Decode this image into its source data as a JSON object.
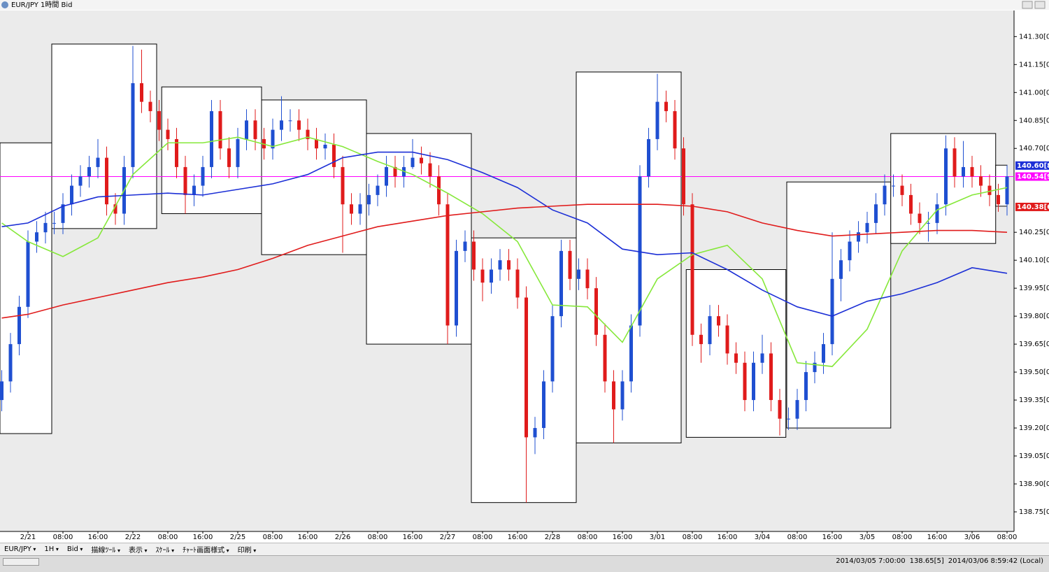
{
  "window": {
    "title": "EUR/JPY 1時間 Bid"
  },
  "toolbar": {
    "items": [
      "EUR/JPY",
      "1H",
      "Bid",
      "描線ﾂｰﾙ",
      "表示",
      "ｽｹｰﾙ",
      "ﾁｬｰﾄ画面様式",
      "印刷"
    ]
  },
  "status_bar": {
    "items": [
      "2014/03/05 7:00:00",
      "138.65[5]",
      "2014/03/06 8:59:42 (Local)"
    ]
  },
  "chart_data": {
    "type": "candlestick",
    "up_color": "#1f4fd1",
    "down_color": "#e01b1b",
    "xlim": [
      -6.4,
      225.6
    ],
    "ylim": [
      138.645,
      141.44
    ],
    "xticks": [
      {
        "value": 0,
        "label": "2/21"
      },
      {
        "value": 8,
        "label": "08:00"
      },
      {
        "value": 16,
        "label": "16:00"
      },
      {
        "value": 24,
        "label": "2/22"
      },
      {
        "value": 32,
        "label": "08:00"
      },
      {
        "value": 40,
        "label": "16:00"
      },
      {
        "value": 48,
        "label": "2/25"
      },
      {
        "value": 56,
        "label": "08:00"
      },
      {
        "value": 64,
        "label": "16:00"
      },
      {
        "value": 72,
        "label": "2/26"
      },
      {
        "value": 80,
        "label": "08:00"
      },
      {
        "value": 88,
        "label": "16:00"
      },
      {
        "value": 96,
        "label": "2/27"
      },
      {
        "value": 104,
        "label": "08:00"
      },
      {
        "value": 112,
        "label": "16:00"
      },
      {
        "value": 120,
        "label": "2/28"
      },
      {
        "value": 128,
        "label": "08:00"
      },
      {
        "value": 136,
        "label": "16:00"
      },
      {
        "value": 144,
        "label": "3/01"
      },
      {
        "value": 152,
        "label": "08:00"
      },
      {
        "value": 160,
        "label": "16:00"
      },
      {
        "value": 168,
        "label": "3/04"
      },
      {
        "value": 176,
        "label": "08:00"
      },
      {
        "value": 184,
        "label": "16:00"
      },
      {
        "value": 192,
        "label": "3/05"
      },
      {
        "value": 200,
        "label": "08:00"
      },
      {
        "value": 208,
        "label": "16:00"
      },
      {
        "value": 216,
        "label": "3/06"
      },
      {
        "value": 224,
        "label": "08:00"
      }
    ],
    "yticks": [
      {
        "value": 141.3,
        "label": "141.30[0]"
      },
      {
        "value": 141.15,
        "label": "141.15[0]"
      },
      {
        "value": 141.0,
        "label": "141.00[0]"
      },
      {
        "value": 140.85,
        "label": "140.85[0]"
      },
      {
        "value": 140.7,
        "label": "140.70[0]"
      },
      {
        "value": 140.25,
        "label": "140.25[0]"
      },
      {
        "value": 140.1,
        "label": "140.10[0]"
      },
      {
        "value": 139.95,
        "label": "139.95[0]"
      },
      {
        "value": 139.8,
        "label": "139.80[0]"
      },
      {
        "value": 139.65,
        "label": "139.65[0]"
      },
      {
        "value": 139.5,
        "label": "139.50[0]"
      },
      {
        "value": 139.35,
        "label": "139.35[0]"
      },
      {
        "value": 139.2,
        "label": "139.20[0]"
      },
      {
        "value": 139.05,
        "label": "139.05[0]"
      },
      {
        "value": 138.9,
        "label": "138.90[0]"
      },
      {
        "value": 138.75,
        "label": "138.75[0]"
      }
    ],
    "price_labels": [
      {
        "value": 140.608,
        "label": "140.60[8",
        "color": "#1c2fd6"
      },
      {
        "value": 140.549,
        "label": "140.54[9",
        "color": "#ff00ff",
        "line": true
      },
      {
        "value": 140.386,
        "label": "140.38[6",
        "color": "#e01b1b"
      }
    ],
    "range_boxes": [
      {
        "start": -6.4,
        "end": 5.44,
        "high": 140.73,
        "low": 139.17
      },
      {
        "start": 5.44,
        "end": 29.44,
        "high": 141.26,
        "low": 140.27
      },
      {
        "start": 30.6,
        "end": 53.44,
        "high": 141.03,
        "low": 140.35
      },
      {
        "start": 53.44,
        "end": 77.44,
        "high": 140.96,
        "low": 140.13
      },
      {
        "start": 77.44,
        "end": 101.44,
        "high": 140.78,
        "low": 139.65
      },
      {
        "start": 101.44,
        "end": 125.44,
        "high": 140.22,
        "low": 138.8
      },
      {
        "start": 125.44,
        "end": 149.44,
        "high": 141.11,
        "low": 139.12
      },
      {
        "start": 150.6,
        "end": 173.4,
        "high": 140.05,
        "low": 139.15
      },
      {
        "start": 173.6,
        "end": 197.4,
        "high": 140.52,
        "low": 139.2
      },
      {
        "start": 197.4,
        "end": 221.4,
        "high": 140.78,
        "low": 140.19
      },
      {
        "start": 221.4,
        "end": 224,
        "high": 140.61,
        "low": 140.39
      }
    ],
    "x": [
      -6,
      -4,
      -2,
      0,
      2,
      4,
      6,
      8,
      10,
      12,
      14,
      16,
      18,
      20,
      22,
      24,
      26,
      28,
      30,
      32,
      34,
      36,
      38,
      40,
      42,
      44,
      46,
      48,
      50,
      52,
      54,
      56,
      58,
      60,
      62,
      64,
      66,
      68,
      70,
      72,
      74,
      76,
      78,
      80,
      82,
      84,
      86,
      88,
      90,
      92,
      94,
      96,
      98,
      100,
      102,
      104,
      106,
      108,
      110,
      112,
      114,
      116,
      118,
      120,
      122,
      124,
      126,
      128,
      130,
      132,
      134,
      136,
      138,
      140,
      142,
      144,
      146,
      148,
      150,
      152,
      154,
      156,
      158,
      160,
      162,
      164,
      166,
      168,
      170,
      172,
      174,
      176,
      178,
      180,
      182,
      184,
      186,
      188,
      190,
      192,
      194,
      196,
      198,
      200,
      202,
      204,
      206,
      208,
      210,
      212,
      214,
      216,
      218,
      220,
      222,
      224
    ],
    "open": [
      139.35,
      139.45,
      139.65,
      139.85,
      140.2,
      140.25,
      140.3,
      140.3,
      140.4,
      140.5,
      140.55,
      140.6,
      140.65,
      140.4,
      140.35,
      140.6,
      141.05,
      140.95,
      140.9,
      140.8,
      140.75,
      140.6,
      140.45,
      140.5,
      140.6,
      140.9,
      140.7,
      140.6,
      140.75,
      140.85,
      140.75,
      140.7,
      140.8,
      140.85,
      140.85,
      140.8,
      140.75,
      140.7,
      140.72,
      140.6,
      140.4,
      140.35,
      140.4,
      140.45,
      140.5,
      140.6,
      140.55,
      140.6,
      140.65,
      140.62,
      140.55,
      140.4,
      139.75,
      140.15,
      140.2,
      140.05,
      139.98,
      140.05,
      140.1,
      140.05,
      139.9,
      139.15,
      139.2,
      139.45,
      139.8,
      140.15,
      140.0,
      140.05,
      139.95,
      139.7,
      139.45,
      139.3,
      139.45,
      139.75,
      140.55,
      140.75,
      140.95,
      140.9,
      140.7,
      140.4,
      139.7,
      139.65,
      139.8,
      139.75,
      139.6,
      139.55,
      139.35,
      139.55,
      139.6,
      139.35,
      139.25,
      139.25,
      139.35,
      139.5,
      139.55,
      139.65,
      140.0,
      140.1,
      140.2,
      140.25,
      140.3,
      140.4,
      140.5,
      140.5,
      140.45,
      140.35,
      140.3,
      140.3,
      140.4,
      140.7,
      140.55,
      140.6,
      140.55,
      140.5,
      140.45,
      140.4
    ],
    "high": [
      139.51,
      139.71,
      139.91,
      140.26,
      140.31,
      140.36,
      140.36,
      140.46,
      140.56,
      140.61,
      140.66,
      140.75,
      140.71,
      140.46,
      140.66,
      141.25,
      141.23,
      141.01,
      140.96,
      140.86,
      140.81,
      140.66,
      140.56,
      140.66,
      140.96,
      140.96,
      140.76,
      140.81,
      140.91,
      140.91,
      140.81,
      140.86,
      140.98,
      140.91,
      140.91,
      140.86,
      140.81,
      140.78,
      140.78,
      140.66,
      140.46,
      140.46,
      140.51,
      140.56,
      140.66,
      140.66,
      140.66,
      140.75,
      140.71,
      140.68,
      140.61,
      140.46,
      140.21,
      140.26,
      140.26,
      140.11,
      140.11,
      140.16,
      140.16,
      140.11,
      139.96,
      139.26,
      139.51,
      139.86,
      140.21,
      140.21,
      140.11,
      140.11,
      140.01,
      139.76,
      139.51,
      139.51,
      139.81,
      140.61,
      140.81,
      141.1,
      141.01,
      140.96,
      140.76,
      140.46,
      139.76,
      139.86,
      139.86,
      139.81,
      139.66,
      139.61,
      139.61,
      139.7,
      139.66,
      139.41,
      139.31,
      139.41,
      139.56,
      139.61,
      139.71,
      140.25,
      140.16,
      140.26,
      140.31,
      140.36,
      140.46,
      140.56,
      140.56,
      140.56,
      140.51,
      140.41,
      140.36,
      140.46,
      140.77,
      140.76,
      140.74,
      140.66,
      140.61,
      140.56,
      140.51,
      140.61
    ],
    "low": [
      139.29,
      139.39,
      139.59,
      139.79,
      140.14,
      140.19,
      140.24,
      140.24,
      140.34,
      140.44,
      140.49,
      140.54,
      140.34,
      140.29,
      140.29,
      140.54,
      140.89,
      140.84,
      140.74,
      140.69,
      140.54,
      140.35,
      140.39,
      140.44,
      140.54,
      140.64,
      140.54,
      140.54,
      140.69,
      140.69,
      140.64,
      140.64,
      140.74,
      140.79,
      140.74,
      140.69,
      140.64,
      140.64,
      140.54,
      140.14,
      140.29,
      140.29,
      140.34,
      140.39,
      140.44,
      140.49,
      140.49,
      140.59,
      140.56,
      140.49,
      140.34,
      139.65,
      139.69,
      140.09,
      139.99,
      139.88,
      139.92,
      139.99,
      139.99,
      139.84,
      138.8,
      139.06,
      139.14,
      139.39,
      139.74,
      139.94,
      139.94,
      139.89,
      139.64,
      139.39,
      139.12,
      139.24,
      139.39,
      139.69,
      140.49,
      140.69,
      140.84,
      140.64,
      140.34,
      139.64,
      139.55,
      139.59,
      139.69,
      139.54,
      139.49,
      139.29,
      139.29,
      139.49,
      139.29,
      139.16,
      139.19,
      139.19,
      139.29,
      139.44,
      139.49,
      139.59,
      139.88,
      140.04,
      140.14,
      140.19,
      140.24,
      140.34,
      140.44,
      140.39,
      140.29,
      140.24,
      140.2,
      140.24,
      140.34,
      140.49,
      140.49,
      140.49,
      140.44,
      140.39,
      140.36,
      140.34
    ],
    "close": [
      139.45,
      139.65,
      139.85,
      140.2,
      140.25,
      140.3,
      140.3,
      140.4,
      140.5,
      140.55,
      140.6,
      140.65,
      140.4,
      140.35,
      140.6,
      141.05,
      140.95,
      140.9,
      140.8,
      140.75,
      140.6,
      140.45,
      140.5,
      140.6,
      140.9,
      140.7,
      140.6,
      140.75,
      140.85,
      140.75,
      140.7,
      140.8,
      140.85,
      140.85,
      140.8,
      140.75,
      140.7,
      140.72,
      140.6,
      140.4,
      140.35,
      140.4,
      140.45,
      140.5,
      140.6,
      140.55,
      140.6,
      140.65,
      140.62,
      140.55,
      140.4,
      139.75,
      140.15,
      140.2,
      140.05,
      139.98,
      140.05,
      140.1,
      140.05,
      139.9,
      139.15,
      139.2,
      139.45,
      139.8,
      140.15,
      140.0,
      140.05,
      139.95,
      139.7,
      139.45,
      139.3,
      139.45,
      139.75,
      140.55,
      140.75,
      140.95,
      140.9,
      140.7,
      140.4,
      139.7,
      139.65,
      139.8,
      139.75,
      139.6,
      139.55,
      139.35,
      139.55,
      139.6,
      139.35,
      139.25,
      139.25,
      139.35,
      139.5,
      139.55,
      139.65,
      140.0,
      140.1,
      140.2,
      140.25,
      140.3,
      140.4,
      140.5,
      140.5,
      140.45,
      140.35,
      140.3,
      140.3,
      140.4,
      140.7,
      140.55,
      140.6,
      140.55,
      140.5,
      140.45,
      140.4,
      140.55
    ],
    "ma_x": [
      -6,
      0,
      8,
      16,
      24,
      32,
      40,
      48,
      56,
      64,
      72,
      80,
      88,
      96,
      104,
      112,
      120,
      128,
      136,
      144,
      152,
      160,
      168,
      176,
      184,
      192,
      200,
      208,
      216,
      224
    ],
    "moving_averages": [
      {
        "color": "#86e83a",
        "values": [
          140.3,
          140.2,
          140.12,
          140.22,
          140.56,
          140.73,
          140.73,
          140.76,
          140.71,
          140.76,
          140.71,
          140.63,
          140.56,
          140.46,
          140.35,
          140.2,
          139.86,
          139.85,
          139.66,
          140.0,
          140.13,
          140.18,
          140.0,
          139.55,
          139.53,
          139.73,
          140.15,
          140.37,
          140.45,
          140.49
        ]
      },
      {
        "color": "#1c2fd6",
        "values": [
          140.28,
          140.3,
          140.39,
          140.44,
          140.45,
          140.46,
          140.45,
          140.48,
          140.51,
          140.56,
          140.65,
          140.68,
          140.68,
          140.64,
          140.57,
          140.49,
          140.37,
          140.3,
          140.16,
          140.13,
          140.14,
          140.05,
          139.94,
          139.85,
          139.8,
          139.88,
          139.92,
          139.98,
          140.06,
          140.03
        ]
      },
      {
        "color": "#e01b1b",
        "values": [
          139.79,
          139.81,
          139.86,
          139.9,
          139.94,
          139.98,
          140.01,
          140.05,
          140.11,
          140.18,
          140.23,
          140.28,
          140.31,
          140.34,
          140.36,
          140.38,
          140.39,
          140.4,
          140.4,
          140.4,
          140.39,
          140.36,
          140.3,
          140.26,
          140.23,
          140.24,
          140.25,
          140.26,
          140.26,
          140.25
        ]
      }
    ]
  }
}
